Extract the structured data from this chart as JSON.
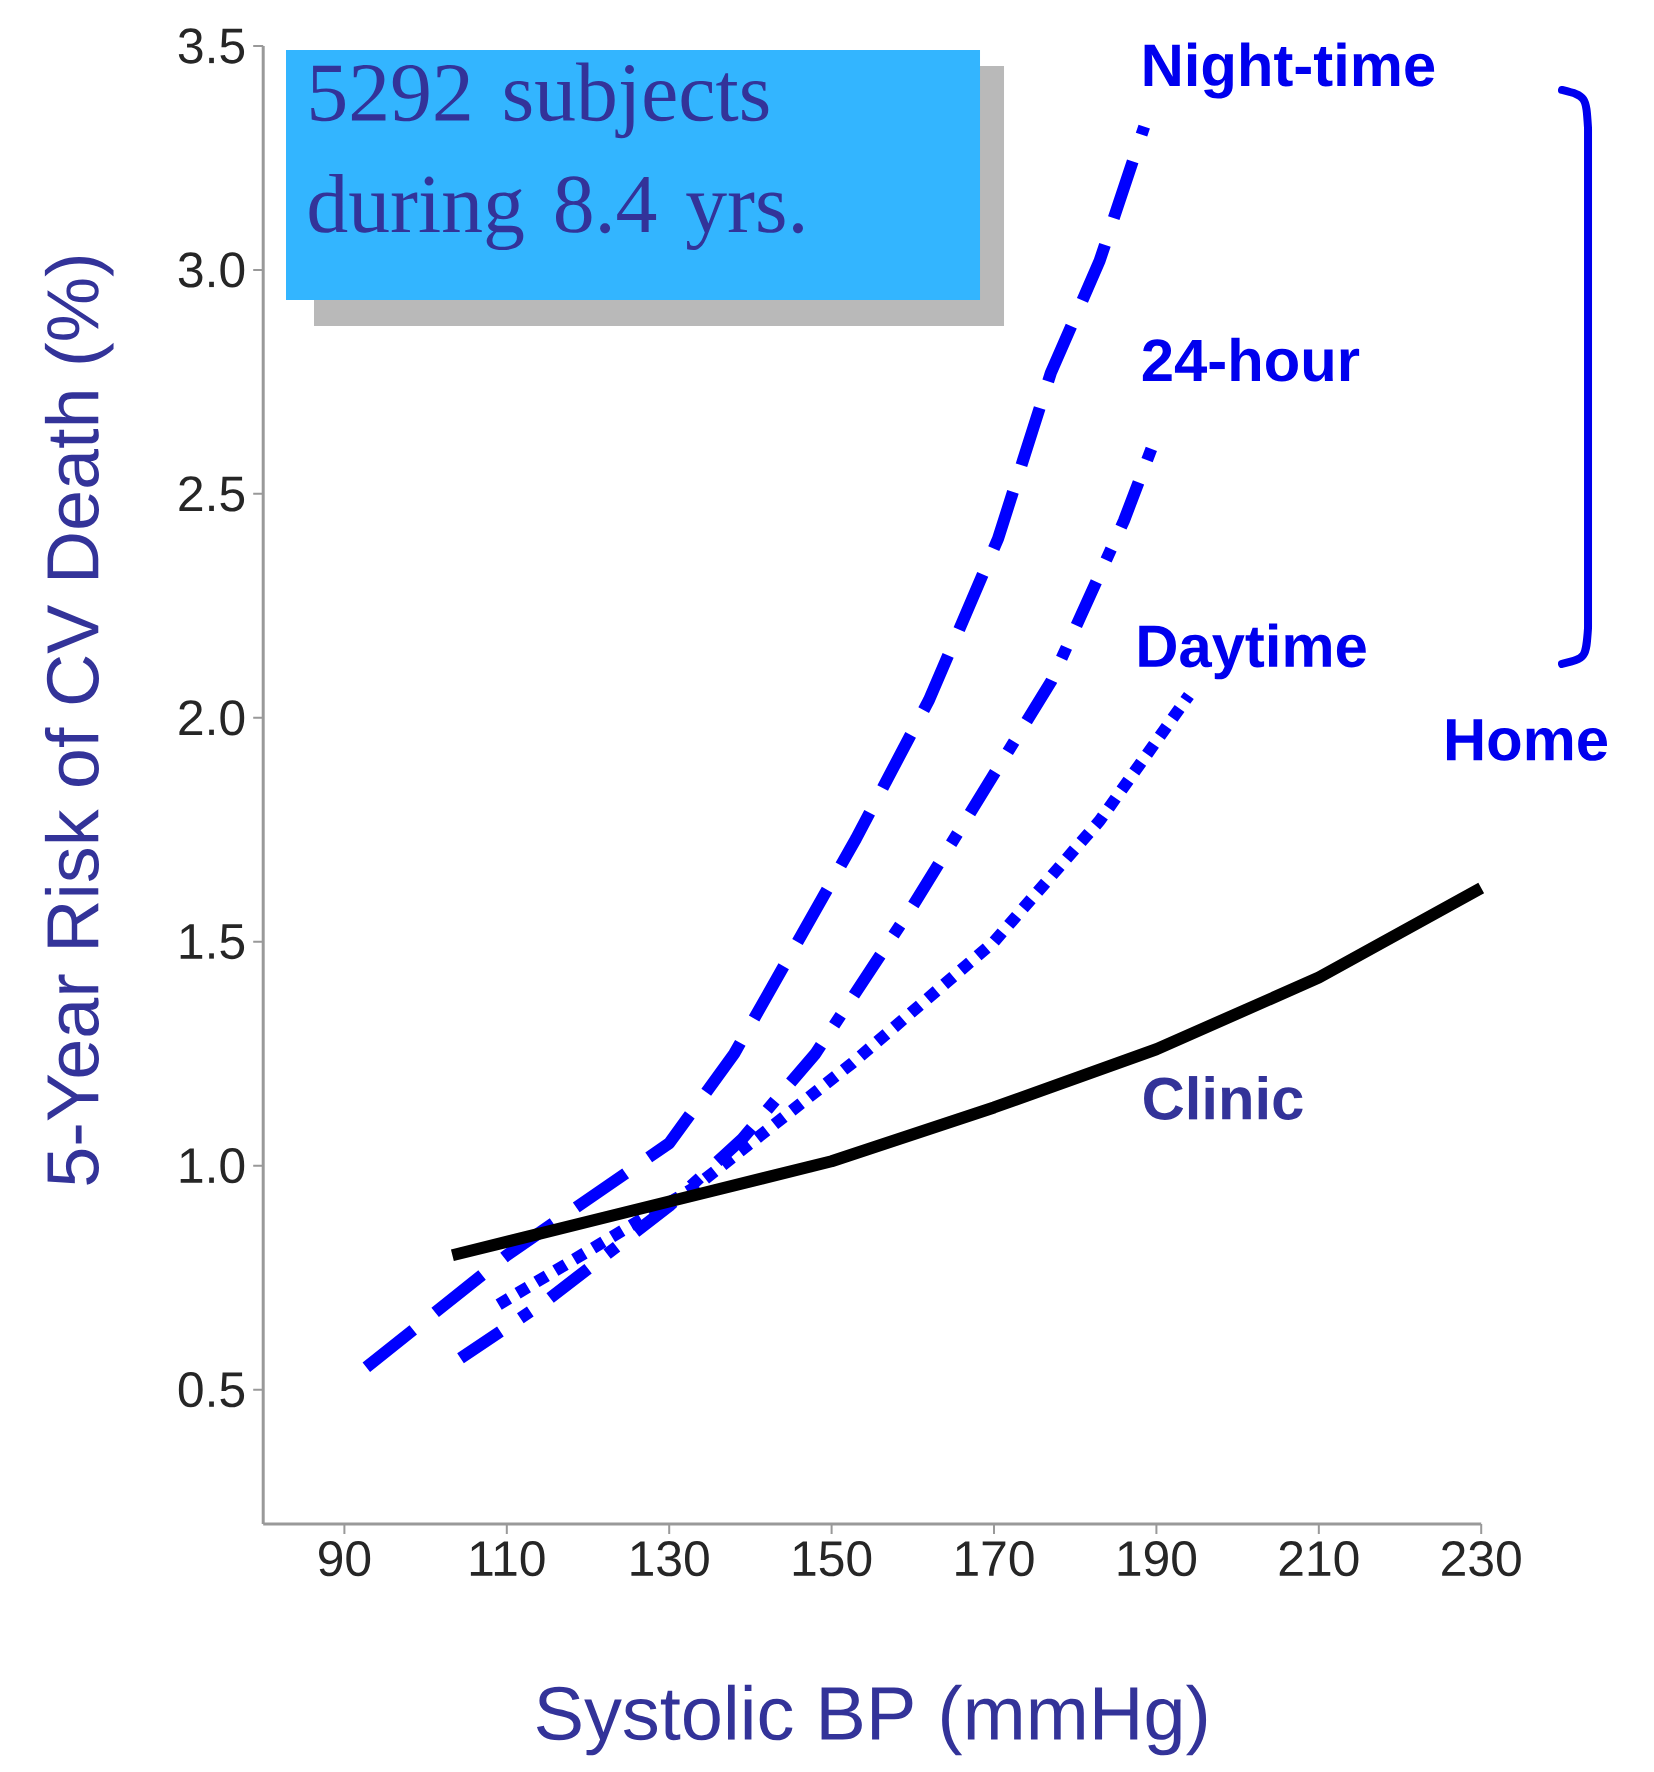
{
  "chart_data": {
    "type": "line",
    "xlabel": "Systolic BP (mmHg)",
    "ylabel": "5-Year Risk of CV Death (%)",
    "xlim": [
      80,
      230
    ],
    "ylim": [
      0.2,
      3.5
    ],
    "xticks": [
      90,
      110,
      130,
      150,
      170,
      190,
      210,
      230
    ],
    "yticks": [
      0.5,
      {
        "value": 1,
        "label": "1.0"
      },
      1.5,
      {
        "value": 2,
        "label": "2.0"
      },
      2.5,
      {
        "value": 3,
        "label": "3.0"
      },
      3.5
    ],
    "grid": false,
    "marker": "none",
    "series": [
      {
        "name": "Night-time",
        "color": "#0000ff",
        "line_style": "dashed",
        "x": [
          92.7,
          110,
          130,
          138,
          153,
          162,
          170.5,
          177,
          183,
          188.5
        ],
        "values": [
          0.55,
          0.8,
          1.05,
          1.25,
          1.73,
          2.04,
          2.4,
          2.77,
          3.02,
          3.32
        ]
      },
      {
        "name": "24-hour",
        "color": "#0000ff",
        "line_style": "dashdot",
        "x": [
          104.3,
          115,
          130,
          139,
          148,
          160,
          177,
          186,
          190
        ],
        "values": [
          0.57,
          0.7,
          0.91,
          1.06,
          1.25,
          1.58,
          2.08,
          2.44,
          2.63
        ]
      },
      {
        "name": "Daytime",
        "color": "#0000ff",
        "line_style": "dotted",
        "x": [
          109,
          133,
          152.6,
          170,
          183,
          194
        ],
        "values": [
          0.69,
          0.95,
          1.23,
          1.5,
          1.77,
          2.05
        ]
      },
      {
        "name": "Clinic",
        "color": "#000000",
        "line_style": "solid",
        "x": [
          103.3,
          130,
          150,
          170,
          190,
          210,
          230
        ],
        "values": [
          0.8,
          0.92,
          1.01,
          1.13,
          1.26,
          1.42,
          1.62
        ]
      }
    ],
    "annotations": [
      "5292 subjects during 8.4 yrs.",
      "Home"
    ]
  }
}
